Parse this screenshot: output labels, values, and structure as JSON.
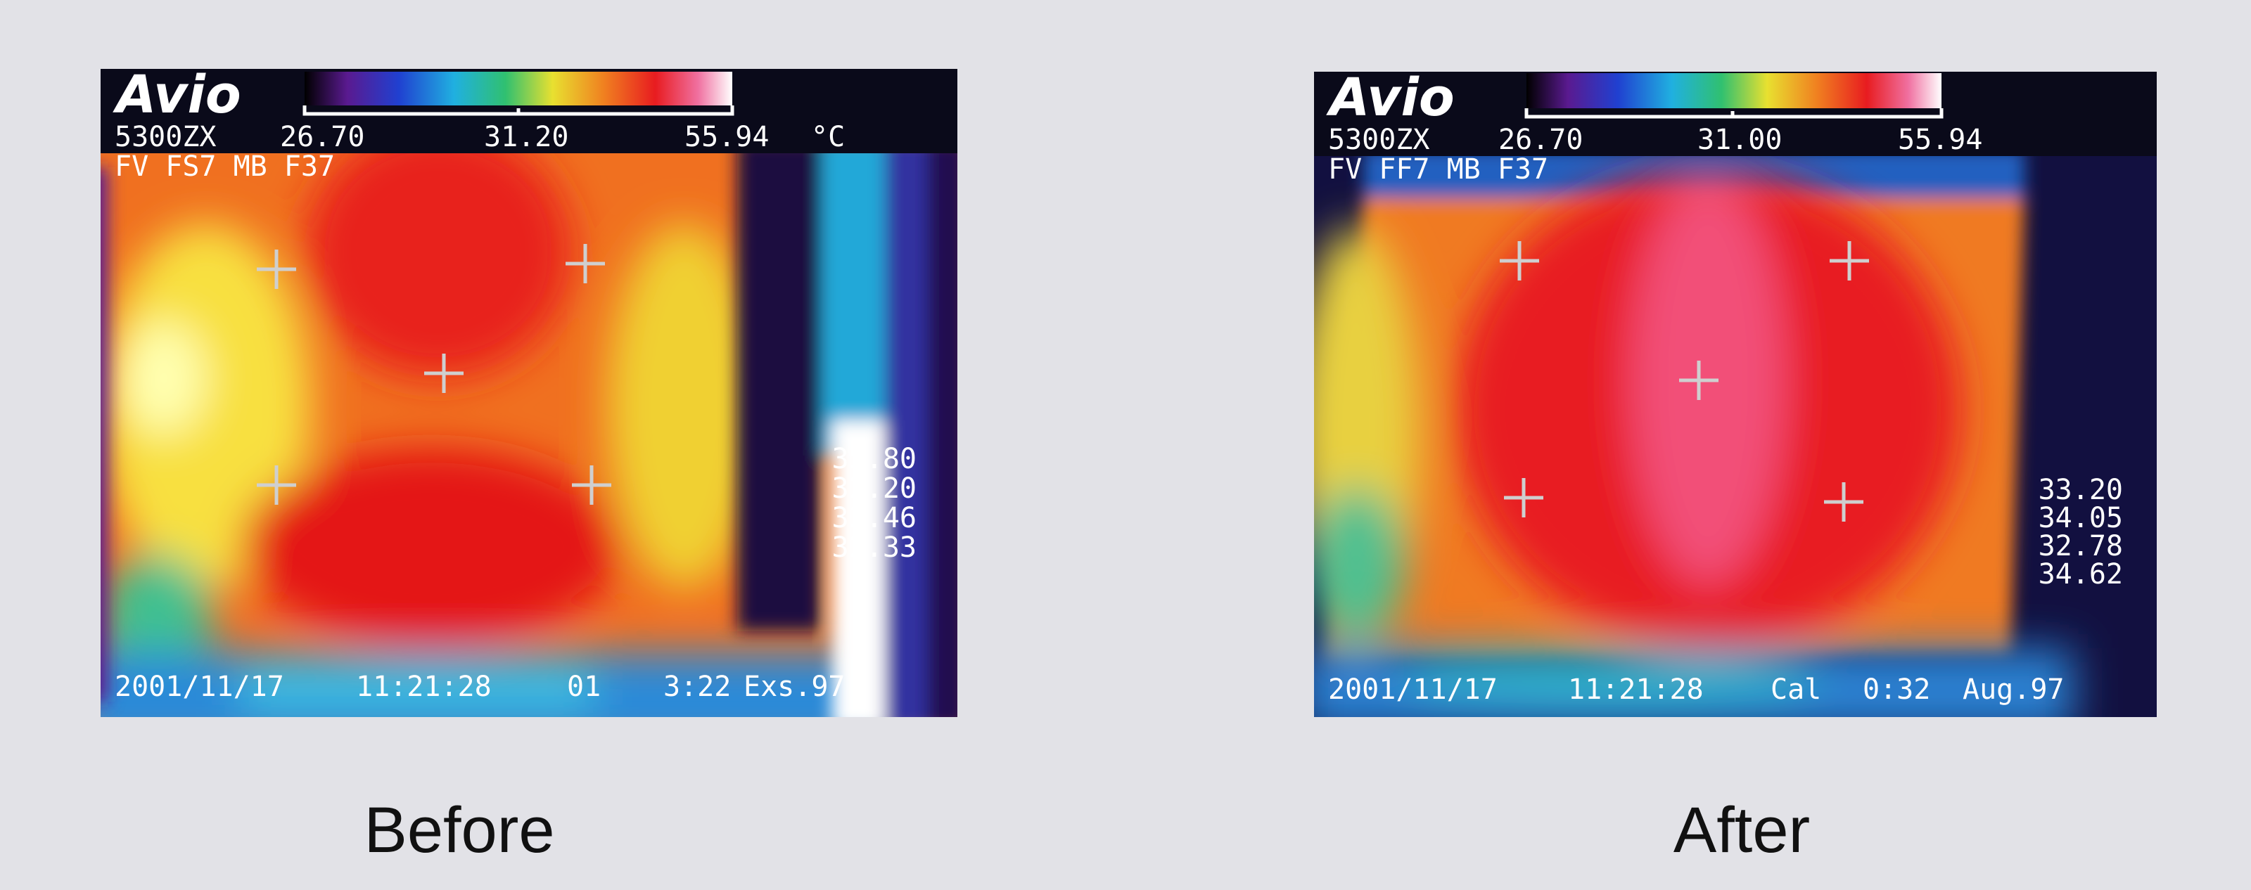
{
  "panels": [
    {
      "label": "Before",
      "brand": "Avio",
      "model": "5300ZX",
      "scale": [
        "26.70",
        "31.20",
        "55.94"
      ],
      "unit": "°C",
      "settings": "FV FS7 MB F37",
      "readings": [
        "33.80",
        "32.20",
        "32.46",
        "32.33"
      ],
      "footer": [
        "2001/11/17",
        "11:21:28",
        "01",
        "3:22",
        "Exs.97"
      ]
    },
    {
      "label": "After",
      "brand": "Avio",
      "model": "5300ZX",
      "scale": [
        "26.70",
        "31.00",
        "55.94"
      ],
      "settings": "FV FF7 MB F37",
      "readings": [
        "33.20",
        "34.05",
        "32.78",
        "34.62"
      ],
      "footer": [
        "2001/11/17",
        "11:21:28",
        "Cal",
        "0:32",
        "Aug.97"
      ]
    }
  ]
}
